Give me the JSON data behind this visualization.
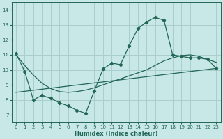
{
  "xlabel": "Humidex (Indice chaleur)",
  "xlim": [
    -0.5,
    23.5
  ],
  "ylim": [
    6.5,
    14.5
  ],
  "yticks": [
    7,
    8,
    9,
    10,
    11,
    12,
    13,
    14
  ],
  "xticks": [
    0,
    1,
    2,
    3,
    4,
    5,
    6,
    7,
    8,
    9,
    10,
    11,
    12,
    13,
    14,
    15,
    16,
    17,
    18,
    19,
    20,
    21,
    22,
    23
  ],
  "bg_color": "#c8e8e8",
  "grid_color": "#aacece",
  "line_color": "#226655",
  "line1_x": [
    0,
    1,
    2,
    3,
    4,
    5,
    6,
    7,
    8,
    9,
    10,
    11,
    12,
    13,
    14,
    15,
    16,
    17,
    18,
    19,
    20,
    21,
    22,
    23
  ],
  "line1_y": [
    11.1,
    9.9,
    8.0,
    8.3,
    8.1,
    7.8,
    7.6,
    7.3,
    7.1,
    8.6,
    10.05,
    10.45,
    10.35,
    11.6,
    12.75,
    13.2,
    13.5,
    13.3,
    11.0,
    10.9,
    10.8,
    10.8,
    10.7,
    10.1
  ],
  "line2_x": [
    0,
    1,
    2,
    3,
    4,
    5,
    6,
    7,
    8,
    9,
    10,
    11,
    12,
    13,
    14,
    15,
    16,
    17,
    18,
    19,
    20,
    21,
    22,
    23
  ],
  "line2_y": [
    11.0,
    10.3,
    9.65,
    9.1,
    8.75,
    8.55,
    8.5,
    8.55,
    8.65,
    8.8,
    9.0,
    9.2,
    9.4,
    9.6,
    9.8,
    10.0,
    10.3,
    10.6,
    10.8,
    10.95,
    11.0,
    10.9,
    10.7,
    10.5
  ],
  "line3_x": [
    0,
    23
  ],
  "line3_y": [
    8.5,
    10.1
  ]
}
